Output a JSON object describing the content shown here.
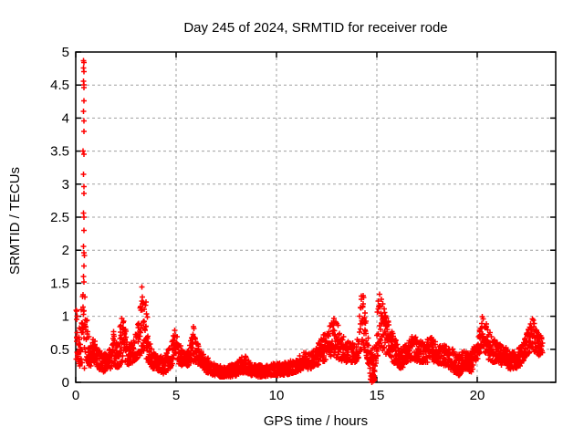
{
  "figure": {
    "colors": {
      "background": "#ffffff",
      "axis": "#000000",
      "grid": "#a0a0a0",
      "marker": "#ff0000",
      "text": "#000000"
    }
  },
  "chart_data": {
    "type": "scatter",
    "marker": "plus",
    "title": "Day 245 of 2024, SRMTID for receiver rode",
    "xlabel": "GPS time / hours",
    "ylabel": "SRMTID / TECUs",
    "series_name": "SRMTID",
    "xlim": [
      0,
      23.91
    ],
    "ylim": [
      0,
      5
    ],
    "x_ticks": [
      0,
      5,
      10,
      15,
      20
    ],
    "x_tick_labels": [
      "0",
      "5",
      "10",
      "15",
      "20"
    ],
    "y_ticks": [
      0,
      0.5,
      1,
      1.5,
      2,
      2.5,
      3,
      3.5,
      4,
      4.5,
      5
    ],
    "y_tick_labels": [
      "0",
      "0.5",
      "1",
      "1.5",
      "2",
      "2.5",
      "3",
      "3.5",
      "4",
      "4.5",
      "5"
    ],
    "grid": true,
    "grid_style": "dashed",
    "legend": "none",
    "points_per_hour": 110,
    "seed": 7,
    "envelope": [
      [
        0.02,
        0.35,
        1.15
      ],
      [
        0.1,
        0.3,
        0.8
      ],
      [
        0.2,
        0.2,
        1.0
      ],
      [
        0.3,
        0.2,
        1.3
      ],
      [
        0.42,
        0.2,
        1.45
      ],
      [
        0.55,
        0.25,
        1.05
      ],
      [
        0.7,
        0.2,
        0.6
      ],
      [
        0.9,
        0.3,
        0.7
      ],
      [
        1.1,
        0.2,
        0.5
      ],
      [
        1.4,
        0.15,
        0.45
      ],
      [
        1.7,
        0.2,
        0.5
      ],
      [
        1.95,
        0.25,
        0.85
      ],
      [
        2.1,
        0.2,
        0.6
      ],
      [
        2.3,
        0.3,
        1.05
      ],
      [
        2.45,
        0.3,
        0.9
      ],
      [
        2.6,
        0.25,
        0.6
      ],
      [
        2.9,
        0.3,
        0.65
      ],
      [
        3.1,
        0.35,
        0.9
      ],
      [
        3.3,
        0.45,
        1.48
      ],
      [
        3.45,
        0.4,
        1.35
      ],
      [
        3.6,
        0.3,
        0.9
      ],
      [
        3.8,
        0.2,
        0.5
      ],
      [
        4.1,
        0.15,
        0.4
      ],
      [
        4.4,
        0.12,
        0.38
      ],
      [
        4.7,
        0.2,
        0.55
      ],
      [
        4.9,
        0.35,
        0.82
      ],
      [
        5.05,
        0.3,
        0.7
      ],
      [
        5.3,
        0.25,
        0.55
      ],
      [
        5.6,
        0.25,
        0.5
      ],
      [
        5.85,
        0.3,
        0.85
      ],
      [
        6.0,
        0.3,
        0.7
      ],
      [
        6.2,
        0.25,
        0.5
      ],
      [
        6.5,
        0.15,
        0.4
      ],
      [
        6.8,
        0.1,
        0.3
      ],
      [
        7.2,
        0.08,
        0.25
      ],
      [
        7.6,
        0.08,
        0.25
      ],
      [
        8.0,
        0.1,
        0.3
      ],
      [
        8.45,
        0.15,
        0.45
      ],
      [
        8.7,
        0.1,
        0.3
      ],
      [
        9.0,
        0.08,
        0.28
      ],
      [
        9.4,
        0.08,
        0.25
      ],
      [
        9.8,
        0.1,
        0.28
      ],
      [
        10.2,
        0.1,
        0.3
      ],
      [
        10.6,
        0.12,
        0.32
      ],
      [
        11.0,
        0.15,
        0.35
      ],
      [
        11.4,
        0.2,
        0.5
      ],
      [
        11.7,
        0.2,
        0.45
      ],
      [
        12.0,
        0.25,
        0.55
      ],
      [
        12.3,
        0.3,
        0.7
      ],
      [
        12.6,
        0.35,
        0.9
      ],
      [
        12.9,
        0.4,
        1.0
      ],
      [
        13.1,
        0.35,
        0.85
      ],
      [
        13.4,
        0.3,
        0.65
      ],
      [
        13.7,
        0.3,
        0.6
      ],
      [
        14.0,
        0.3,
        0.6
      ],
      [
        14.2,
        0.45,
        1.2
      ],
      [
        14.3,
        0.55,
        1.55
      ],
      [
        14.4,
        0.45,
        1.1
      ],
      [
        14.55,
        0.3,
        0.7
      ],
      [
        14.68,
        0.05,
        0.65
      ],
      [
        14.74,
        0.0,
        0.5
      ],
      [
        14.82,
        0.0,
        0.45
      ],
      [
        14.9,
        0.05,
        0.55
      ],
      [
        15.0,
        0.3,
        1.0
      ],
      [
        15.1,
        0.5,
        1.41
      ],
      [
        15.2,
        0.5,
        1.3
      ],
      [
        15.4,
        0.45,
        1.1
      ],
      [
        15.6,
        0.35,
        0.9
      ],
      [
        15.8,
        0.3,
        0.75
      ],
      [
        16.0,
        0.25,
        0.6
      ],
      [
        16.25,
        0.2,
        0.5
      ],
      [
        16.5,
        0.3,
        0.6
      ],
      [
        16.8,
        0.35,
        0.72
      ],
      [
        17.1,
        0.3,
        0.65
      ],
      [
        17.4,
        0.3,
        0.6
      ],
      [
        17.65,
        0.3,
        0.7
      ],
      [
        17.9,
        0.3,
        0.65
      ],
      [
        18.2,
        0.25,
        0.6
      ],
      [
        18.5,
        0.25,
        0.55
      ],
      [
        18.8,
        0.15,
        0.5
      ],
      [
        19.1,
        0.1,
        0.45
      ],
      [
        19.4,
        0.2,
        0.5
      ],
      [
        19.7,
        0.15,
        0.45
      ],
      [
        19.95,
        0.3,
        0.6
      ],
      [
        20.15,
        0.45,
        0.9
      ],
      [
        20.3,
        0.5,
        1.05
      ],
      [
        20.45,
        0.4,
        0.9
      ],
      [
        20.7,
        0.3,
        0.7
      ],
      [
        21.0,
        0.3,
        0.6
      ],
      [
        21.3,
        0.25,
        0.55
      ],
      [
        21.6,
        0.2,
        0.5
      ],
      [
        21.9,
        0.2,
        0.45
      ],
      [
        22.15,
        0.25,
        0.55
      ],
      [
        22.4,
        0.35,
        0.7
      ],
      [
        22.6,
        0.45,
        0.85
      ],
      [
        22.75,
        0.5,
        1.0
      ],
      [
        22.9,
        0.45,
        0.85
      ],
      [
        23.05,
        0.4,
        0.75
      ],
      [
        23.25,
        0.45,
        0.68
      ]
    ],
    "spike_points": [
      [
        0.38,
        4.87
      ],
      [
        0.41,
        4.84
      ],
      [
        0.39,
        4.76
      ],
      [
        0.42,
        4.7
      ],
      [
        0.38,
        4.56
      ],
      [
        0.4,
        4.5
      ],
      [
        0.42,
        4.46
      ],
      [
        0.4,
        4.26
      ],
      [
        0.39,
        4.1
      ],
      [
        0.41,
        3.96
      ],
      [
        0.4,
        3.8
      ],
      [
        0.37,
        3.5
      ],
      [
        0.41,
        3.45
      ],
      [
        0.39,
        3.15
      ],
      [
        0.4,
        2.96
      ],
      [
        0.42,
        2.86
      ],
      [
        0.38,
        2.56
      ],
      [
        0.41,
        2.5
      ],
      [
        0.4,
        2.3
      ],
      [
        0.39,
        2.06
      ],
      [
        0.41,
        1.96
      ],
      [
        0.43,
        1.92
      ],
      [
        0.4,
        1.76
      ],
      [
        0.38,
        1.6
      ],
      [
        0.42,
        1.52
      ],
      [
        0.05,
        1.08
      ],
      [
        0.06,
        1.0
      ],
      [
        0.04,
        0.95
      ],
      [
        14.76,
        0.0
      ],
      [
        14.78,
        0.02
      ],
      [
        14.78,
        0.12
      ],
      [
        14.79,
        0.22
      ],
      [
        14.77,
        0.32
      ],
      [
        14.78,
        0.42
      ],
      [
        14.8,
        0.52
      ],
      [
        14.76,
        0.08
      ],
      [
        14.8,
        0.05
      ],
      [
        14.82,
        0.02
      ],
      [
        14.84,
        0.06
      ],
      [
        14.74,
        0.1
      ],
      [
        14.86,
        0.1
      ],
      [
        14.88,
        0.04
      ],
      [
        14.85,
        0.08
      ],
      [
        14.83,
        0.12
      ]
    ]
  }
}
